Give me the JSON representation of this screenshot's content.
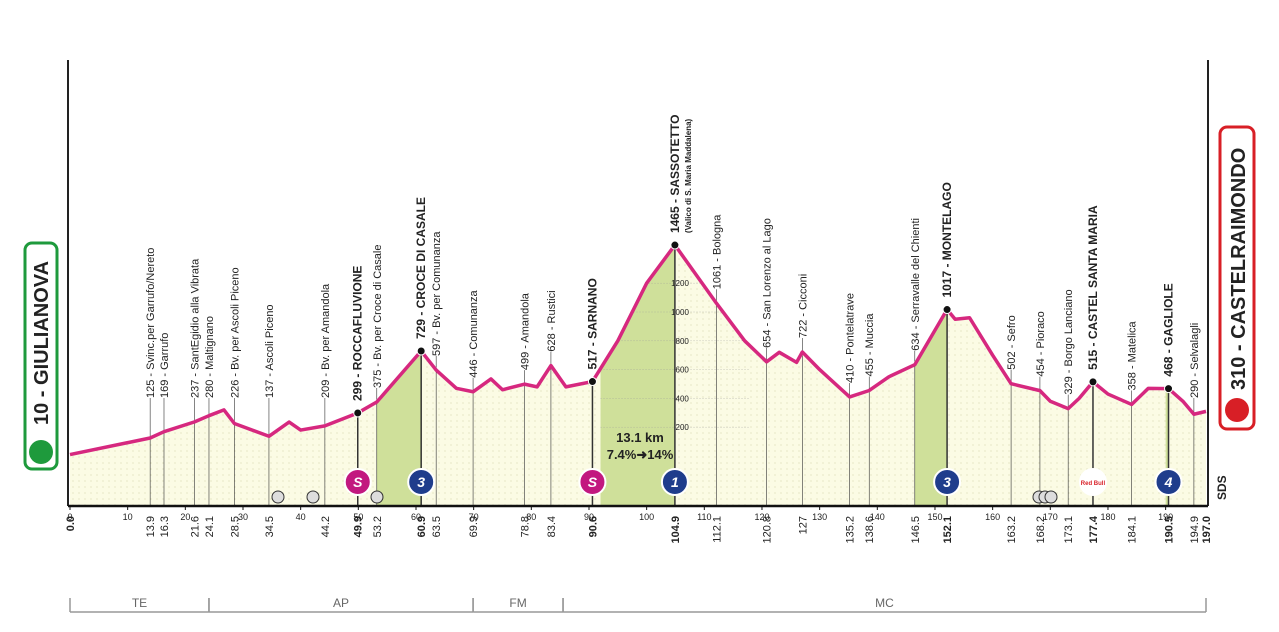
{
  "chart_data": {
    "type": "elevation-profile",
    "start": {
      "name": "10 - GIULIANOVA",
      "km": {
        "value": 0,
        "label": "0.0"
      }
    },
    "finish": {
      "name": "310 - CASTELRAIMONDO",
      "km": {
        "value": 197,
        "label": "197.0"
      }
    },
    "x": [
      0,
      13.9,
      16.3,
      21.6,
      24.1,
      26.7,
      28.5,
      34.5,
      38,
      40,
      44.2,
      49.9,
      53.2,
      60.9,
      63.5,
      67,
      69.9,
      73,
      75,
      78.8,
      81,
      83.4,
      86,
      90.6,
      95,
      100,
      104.9,
      112.1,
      117,
      120.8,
      123,
      126,
      127,
      130,
      135.2,
      138.6,
      142,
      146.5,
      152.1,
      153.5,
      156,
      160,
      163.2,
      168.2,
      170,
      173.1,
      175,
      177.4,
      180,
      184.1,
      187,
      190.5,
      193,
      194.9,
      197
    ],
    "values": [
      10,
      125,
      169,
      237,
      280,
      320,
      226,
      137,
      236,
      180,
      209,
      299,
      375,
      729,
      597,
      470,
      446,
      535,
      460,
      499,
      480,
      628,
      480,
      517,
      800,
      1200,
      1465,
      1061,
      800,
      654,
      720,
      650,
      722,
      600,
      410,
      455,
      550,
      634,
      1017,
      950,
      960,
      700,
      502,
      454,
      380,
      329,
      400,
      515,
      430,
      358,
      470,
      468,
      380,
      290,
      310
    ],
    "color": "#d6287f",
    "xlim": [
      0,
      197
    ],
    "xticks": [
      0,
      10,
      20,
      30,
      40,
      50,
      60,
      70,
      80,
      90,
      100,
      110,
      120,
      130,
      140,
      150,
      160,
      170,
      180,
      190
    ],
    "ylim": [
      0,
      1500
    ],
    "yticks": [
      200,
      400,
      600,
      800,
      1000,
      1200
    ],
    "waypoints": [
      {
        "km": 13.9,
        "label": "125 - Svinc.per Garrufo/Nereto"
      },
      {
        "km": 16.3,
        "label": "169 - Garrufo"
      },
      {
        "km": 21.6,
        "label": "237 - SantEgidio alla Vibrata"
      },
      {
        "km": 24.1,
        "label": "280 - Maltignano"
      },
      {
        "km": 28.5,
        "label": "226 - Bv. per Ascoli Piceno"
      },
      {
        "km": 34.5,
        "label": "137 - Ascoli Piceno"
      },
      {
        "km": 44.2,
        "label": "209 - Bv. per Amandola"
      },
      {
        "km": 49.9,
        "label": "299 - ROCCAFLUVIONE",
        "bold": true
      },
      {
        "km": 53.2,
        "label": "375 - Bv. per Croce di Casale"
      },
      {
        "km": 60.9,
        "label": "729 - CROCE DI CASALE",
        "bold": true
      },
      {
        "km": 63.5,
        "label": "597 - Bv. per Comunanza"
      },
      {
        "km": 69.9,
        "label": "446 - Comunanza"
      },
      {
        "km": 78.8,
        "label": "499 - Amandola"
      },
      {
        "km": 83.4,
        "label": "628 - Rustici"
      },
      {
        "km": 90.6,
        "label": "517 - SARNANO",
        "bold": true
      },
      {
        "km": 104.9,
        "label": "1465 - SASSOTETTO",
        "bold": true,
        "sub": "(Valico di S. Maria Maddalena)"
      },
      {
        "km": 112.1,
        "label": "1061 - Bologna"
      },
      {
        "km": 120.8,
        "label": "654 - San Lorenzo al Lago"
      },
      {
        "km": 127.0,
        "label": "722 - Cicconi"
      },
      {
        "km": 135.2,
        "label": "410 - Pontelatrave"
      },
      {
        "km": 138.6,
        "label": "455 - Muccia"
      },
      {
        "km": 146.5,
        "label": "634 - Serravalle del Chienti"
      },
      {
        "km": 152.1,
        "label": "1017 - MONTELAGO",
        "bold": true
      },
      {
        "km": 163.2,
        "label": "502 - Sefro"
      },
      {
        "km": 168.2,
        "label": "454 - Pioraco"
      },
      {
        "km": 173.1,
        "label": "329 - Borgo Lanciano"
      },
      {
        "km": 177.4,
        "label": "515 - CASTEL SANTA MARIA",
        "bold": true
      },
      {
        "km": 184.1,
        "label": "358 - Matelica"
      },
      {
        "km": 190.5,
        "label": "468 - GAGLIOLE",
        "bold": true
      },
      {
        "km": 194.9,
        "label": "290 - Selvalagli"
      }
    ],
    "climbs": [
      {
        "from": 53.2,
        "to": 60.9
      },
      {
        "from": 92,
        "to": 104.9
      },
      {
        "from": 146.5,
        "to": 152.1
      },
      {
        "from": 190,
        "to": 190.5
      }
    ],
    "badges": [
      {
        "km": 49.9,
        "text": "S",
        "color": "#c2187f"
      },
      {
        "km": 60.9,
        "text": "3",
        "color": "#1f3d8c"
      },
      {
        "km": 90.6,
        "text": "S",
        "color": "#c2187f"
      },
      {
        "km": 104.9,
        "text": "1",
        "color": "#1f3d8c"
      },
      {
        "km": 152.1,
        "text": "3",
        "color": "#1f3d8c"
      },
      {
        "km": 177.4,
        "text": "Red Bull",
        "color": "#ffffff"
      },
      {
        "km": 190.5,
        "text": "4",
        "color": "#1f3d8c"
      }
    ],
    "annotation": [
      "13.1 km",
      "7.4%➜14%"
    ],
    "regions": [
      {
        "name": "TE",
        "from": 0,
        "to": 24.1
      },
      {
        "name": "AP",
        "from": 24.1,
        "to": 69.9
      },
      {
        "name": "FM",
        "from": 69.9,
        "to": 85.5
      },
      {
        "name": "MC",
        "from": 85.5,
        "to": 197
      }
    ],
    "logo": "SDS"
  }
}
